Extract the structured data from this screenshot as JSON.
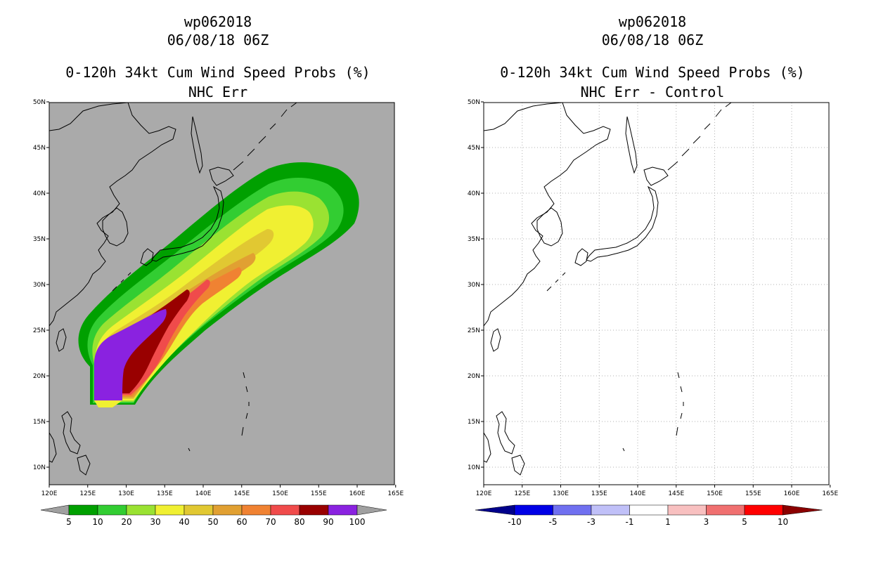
{
  "left": {
    "title1": "wp062018",
    "title2": "06/08/18 06Z",
    "title3": "0-120h 34kt Cum Wind Speed Probs (%)",
    "title4": "NHC Err",
    "background": "#aaaaaa",
    "colorbar": {
      "labels": [
        "5",
        "10",
        "20",
        "30",
        "40",
        "50",
        "60",
        "70",
        "80",
        "90",
        "100"
      ],
      "colors": [
        "#00a000",
        "#32cd32",
        "#9ae232",
        "#f0f032",
        "#e1c832",
        "#e1a032",
        "#f08232",
        "#f04b4b",
        "#990000",
        "#8a22e0"
      ],
      "end_color": "#a0a0a0"
    }
  },
  "right": {
    "title1": "wp062018",
    "title2": "06/08/18 06Z",
    "title3": "0-120h 34kt Cum Wind Speed Probs (%)",
    "title4": "NHC Err - Control",
    "background": "#ffffff",
    "colorbar": {
      "labels": [
        "-10",
        "-5",
        "-3",
        "-1",
        "1",
        "3",
        "5",
        "10"
      ],
      "colors": [
        "#0000e6",
        "#7070f0",
        "#c0c0f8",
        "#ffffff",
        "#f8c0c0",
        "#f07070",
        "#ff0000"
      ],
      "low_end_color": "#00008b",
      "high_end_color": "#8b0000"
    }
  },
  "axes": {
    "lon_labels": [
      "120E",
      "125E",
      "130E",
      "135E",
      "140E",
      "145E",
      "150E",
      "155E",
      "160E",
      "165E"
    ],
    "lat_labels": [
      "10N",
      "15N",
      "20N",
      "25N",
      "30N",
      "35N",
      "40N",
      "45N",
      "50N"
    ]
  }
}
